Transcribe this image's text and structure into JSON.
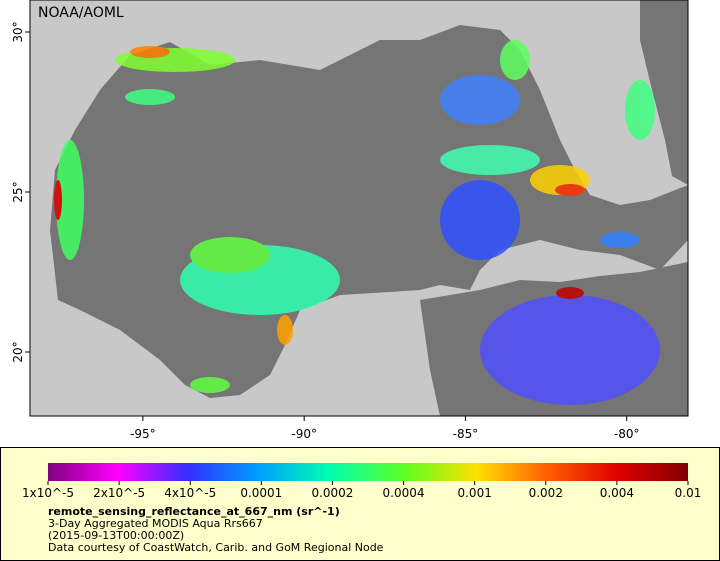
{
  "map": {
    "credit": "NOAA/AOML",
    "xlim": [
      -98.5,
      -78.1
    ],
    "ylim": [
      18,
      31
    ],
    "xticks": [
      {
        "value": -95,
        "label": "-95°"
      },
      {
        "value": -90,
        "label": "-90°"
      },
      {
        "value": -85,
        "label": "-85°"
      },
      {
        "value": -80,
        "label": "-80°"
      }
    ],
    "yticks": [
      {
        "value": 30,
        "label": "30°"
      },
      {
        "value": 25,
        "label": "25°"
      },
      {
        "value": 20,
        "label": "20°"
      }
    ]
  },
  "legend": {
    "labels": [
      "1x10^-5",
      "2x10^-5",
      "4x10^-5",
      "0.0001",
      "0.0002",
      "0.0004",
      "0.001",
      "0.002",
      "0.004",
      "0.01"
    ],
    "title": "remote_sensing_reflectance_at_667_nm (sr^-1)",
    "lines": [
      "3-Day Aggregated MODIS Aqua Rrs667",
      "(2015-09-13T00:00:00Z)",
      "Data courtesy of CoastWatch, Carib. and GoM Regional Node"
    ]
  }
}
